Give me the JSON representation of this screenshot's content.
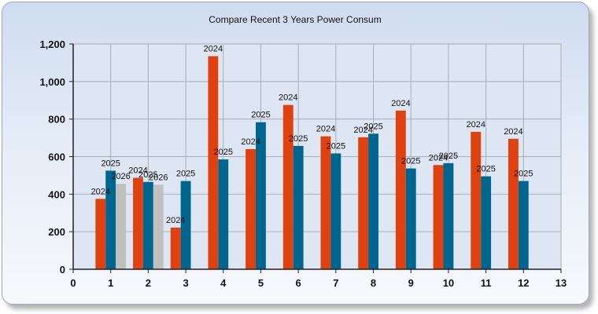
{
  "chart_data": {
    "type": "bar",
    "title": "Compare Recent 3 Years Power Consum",
    "xlabel": "",
    "ylabel": "",
    "x_ticks": [
      "0",
      "1",
      "2",
      "3",
      "4",
      "5",
      "6",
      "7",
      "8",
      "9",
      "10",
      "11",
      "12",
      "13"
    ],
    "y_ticks": [
      "0",
      "200",
      "400",
      "600",
      "800",
      "1,000",
      "1,200"
    ],
    "xlim": [
      0,
      13
    ],
    "ylim": [
      0,
      1200
    ],
    "grid": true,
    "legend": "none",
    "series": [
      {
        "label": "2024",
        "color": "#e04110",
        "x": [
          1,
          2,
          3,
          4,
          5,
          6,
          7,
          8,
          9,
          10,
          11,
          12
        ],
        "values": [
          375,
          487,
          222,
          1135,
          640,
          875,
          708,
          703,
          845,
          555,
          732,
          695
        ]
      },
      {
        "label": "2025",
        "color": "#006690",
        "x": [
          1,
          2,
          3,
          4,
          5,
          6,
          7,
          8,
          9,
          10,
          11,
          12
        ],
        "values": [
          525,
          465,
          470,
          585,
          783,
          657,
          617,
          722,
          537,
          565,
          495,
          470
        ]
      },
      {
        "label": "2026",
        "color": "#c0c0c0",
        "x": [
          1,
          2
        ],
        "values": [
          455,
          450
        ]
      }
    ]
  }
}
